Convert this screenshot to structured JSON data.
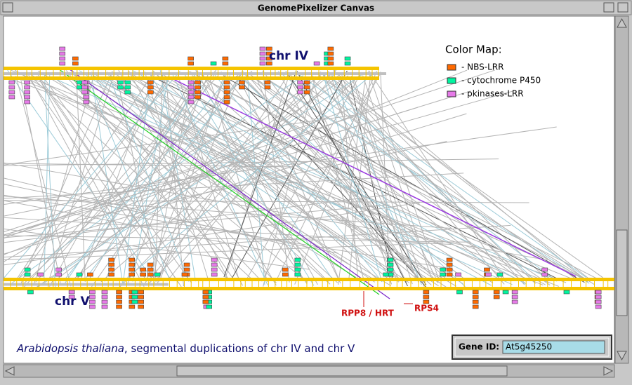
{
  "window": {
    "title": "GenomePixelizer Canvas"
  },
  "canvas": {
    "chromosomes": [
      {
        "label": "chr IV"
      },
      {
        "label": "chr V"
      }
    ],
    "legend": {
      "title": "Color Map:",
      "items": [
        {
          "label": "- NBS-LRR",
          "color": "#ff6a00"
        },
        {
          "label": "- cytochrome P450",
          "color": "#00f5a0"
        },
        {
          "label": "- pkinases-LRR",
          "color": "#e67ae8"
        }
      ]
    },
    "annotations": [
      {
        "label": "RPP8 / HRT"
      },
      {
        "label": "RPS4"
      }
    ],
    "caption": {
      "species": "Arabidopsis thaliana",
      "text": ", segmental duplications of chr IV and chr V"
    }
  },
  "gene_id": {
    "label": "Gene ID:",
    "value": "At5g45250"
  }
}
